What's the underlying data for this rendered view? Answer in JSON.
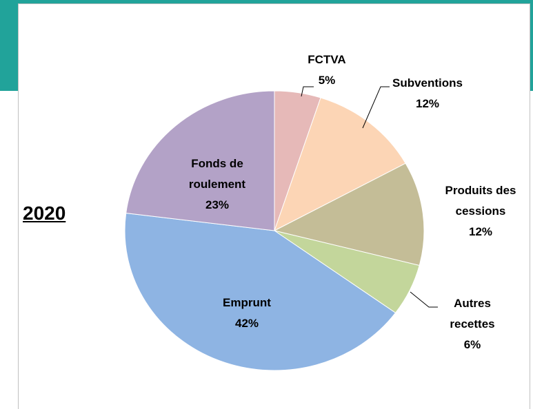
{
  "chart_data": {
    "type": "pie",
    "title": "2020",
    "categories": [
      "FCTVA",
      "Subventions",
      "Produits des cessions",
      "Autres recettes",
      "Emprunt",
      "Fonds de roulement"
    ],
    "values": [
      5,
      12,
      12,
      6,
      42,
      23
    ],
    "value_labels": [
      "5%",
      "12%",
      "12%",
      "6%",
      "42%",
      "23%"
    ],
    "colors": [
      "#e6b9b8",
      "#fcd5b5",
      "#c4bd97",
      "#c3d69b",
      "#8eb4e3",
      "#b3a2c7"
    ],
    "start_angle": 0,
    "direction": "clockwise"
  }
}
